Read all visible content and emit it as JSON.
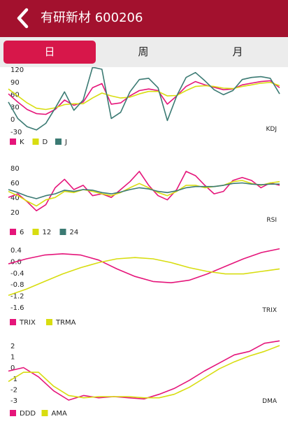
{
  "header": {
    "title": "有研新材 600206",
    "background": "#a3112e"
  },
  "tabs": [
    {
      "label": "日",
      "active": true
    },
    {
      "label": "周",
      "active": false
    },
    {
      "label": "月",
      "active": false
    }
  ],
  "chart_data": [
    {
      "type": "line",
      "indicator": "KDJ",
      "y_ticks": [
        "120",
        "90",
        "60",
        "30",
        "0",
        "-30"
      ],
      "ylim": [
        -30,
        120
      ],
      "legend_position": "bottom-left",
      "series": [
        {
          "name": "K",
          "color": "#e5157a",
          "values": [
            60,
            40,
            22,
            12,
            10,
            22,
            45,
            32,
            40,
            75,
            85,
            35,
            38,
            55,
            68,
            72,
            68,
            35,
            55,
            78,
            90,
            82,
            76,
            70,
            72,
            82,
            86,
            90,
            92,
            75
          ]
        },
        {
          "name": "D",
          "color": "#d8dd10",
          "values": [
            72,
            55,
            38,
            25,
            22,
            26,
            34,
            36,
            36,
            50,
            62,
            55,
            50,
            52,
            60,
            66,
            66,
            55,
            56,
            68,
            78,
            80,
            78,
            74,
            73,
            78,
            82,
            86,
            88,
            80
          ]
        },
        {
          "name": "J",
          "color": "#3b7a73",
          "values": [
            40,
            0,
            -20,
            -28,
            -12,
            25,
            65,
            20,
            45,
            125,
            120,
            0,
            15,
            65,
            95,
            98,
            75,
            -5,
            55,
            100,
            112,
            92,
            70,
            58,
            68,
            95,
            100,
            102,
            98,
            60
          ]
        }
      ]
    },
    {
      "type": "line",
      "indicator": "RSI",
      "y_ticks": [
        "80",
        "60",
        "40",
        "20"
      ],
      "ylim": [
        10,
        100
      ],
      "legend_position": "bottom-left",
      "series": [
        {
          "name": "6",
          "color": "#e5157a",
          "values": [
            42,
            48,
            35,
            20,
            30,
            58,
            72,
            55,
            62,
            45,
            48,
            42,
            55,
            68,
            85,
            62,
            45,
            38,
            55,
            85,
            78,
            62,
            48,
            52,
            70,
            75,
            70,
            58,
            66,
            62
          ]
        },
        {
          "name": "12",
          "color": "#d8dd10",
          "values": [
            52,
            45,
            36,
            28,
            38,
            42,
            52,
            50,
            55,
            52,
            48,
            45,
            50,
            58,
            65,
            58,
            50,
            45,
            52,
            62,
            62,
            58,
            60,
            62,
            68,
            70,
            65,
            62,
            66,
            68
          ]
        },
        {
          "name": "24",
          "color": "#3b7a73",
          "values": [
            55,
            50,
            44,
            40,
            45,
            48,
            54,
            52,
            55,
            54,
            50,
            48,
            51,
            55,
            58,
            56,
            52,
            50,
            53,
            58,
            60,
            60,
            60,
            62,
            65,
            66,
            64,
            63,
            64,
            64
          ]
        }
      ]
    },
    {
      "type": "line",
      "indicator": "TRIX",
      "y_ticks": [
        "0.4",
        "0.0",
        "-0.4",
        "-0.8",
        "-1.2",
        "-1.6"
      ],
      "ylim": [
        -1.6,
        0.4
      ],
      "legend_position": "bottom-left",
      "series": [
        {
          "name": "TRIX",
          "color": "#e5157a",
          "values": [
            -0.3,
            -0.1,
            0.05,
            0.1,
            0.05,
            -0.15,
            -0.5,
            -0.8,
            -1.0,
            -1.05,
            -0.95,
            -0.7,
            -0.4,
            -0.1,
            0.15,
            0.3
          ]
        },
        {
          "name": "TRMA",
          "color": "#d8dd10",
          "values": [
            -1.55,
            -1.3,
            -1.0,
            -0.7,
            -0.45,
            -0.25,
            -0.1,
            -0.05,
            -0.1,
            -0.25,
            -0.45,
            -0.6,
            -0.7,
            -0.7,
            -0.6,
            -0.5
          ]
        }
      ]
    },
    {
      "type": "line",
      "indicator": "DMA",
      "y_ticks": [
        "2",
        "1",
        "0",
        "-1",
        "-2",
        "-3"
      ],
      "ylim": [
        -3,
        2
      ],
      "legend_position": "bottom-left",
      "series": [
        {
          "name": "DDD",
          "color": "#e5157a",
          "values": [
            -0.5,
            -0.2,
            -1.0,
            -2.2,
            -3.0,
            -2.6,
            -2.8,
            -2.7,
            -2.8,
            -2.9,
            -2.5,
            -2.0,
            -1.3,
            -0.5,
            0.2,
            0.9,
            1.2,
            1.9,
            2.1
          ]
        },
        {
          "name": "AMA",
          "color": "#d8dd10",
          "values": [
            -1.4,
            -0.6,
            -0.6,
            -1.8,
            -2.6,
            -2.8,
            -2.7,
            -2.7,
            -2.7,
            -2.8,
            -2.8,
            -2.5,
            -1.9,
            -1.1,
            -0.3,
            0.3,
            0.8,
            1.2,
            1.7
          ]
        }
      ]
    }
  ]
}
